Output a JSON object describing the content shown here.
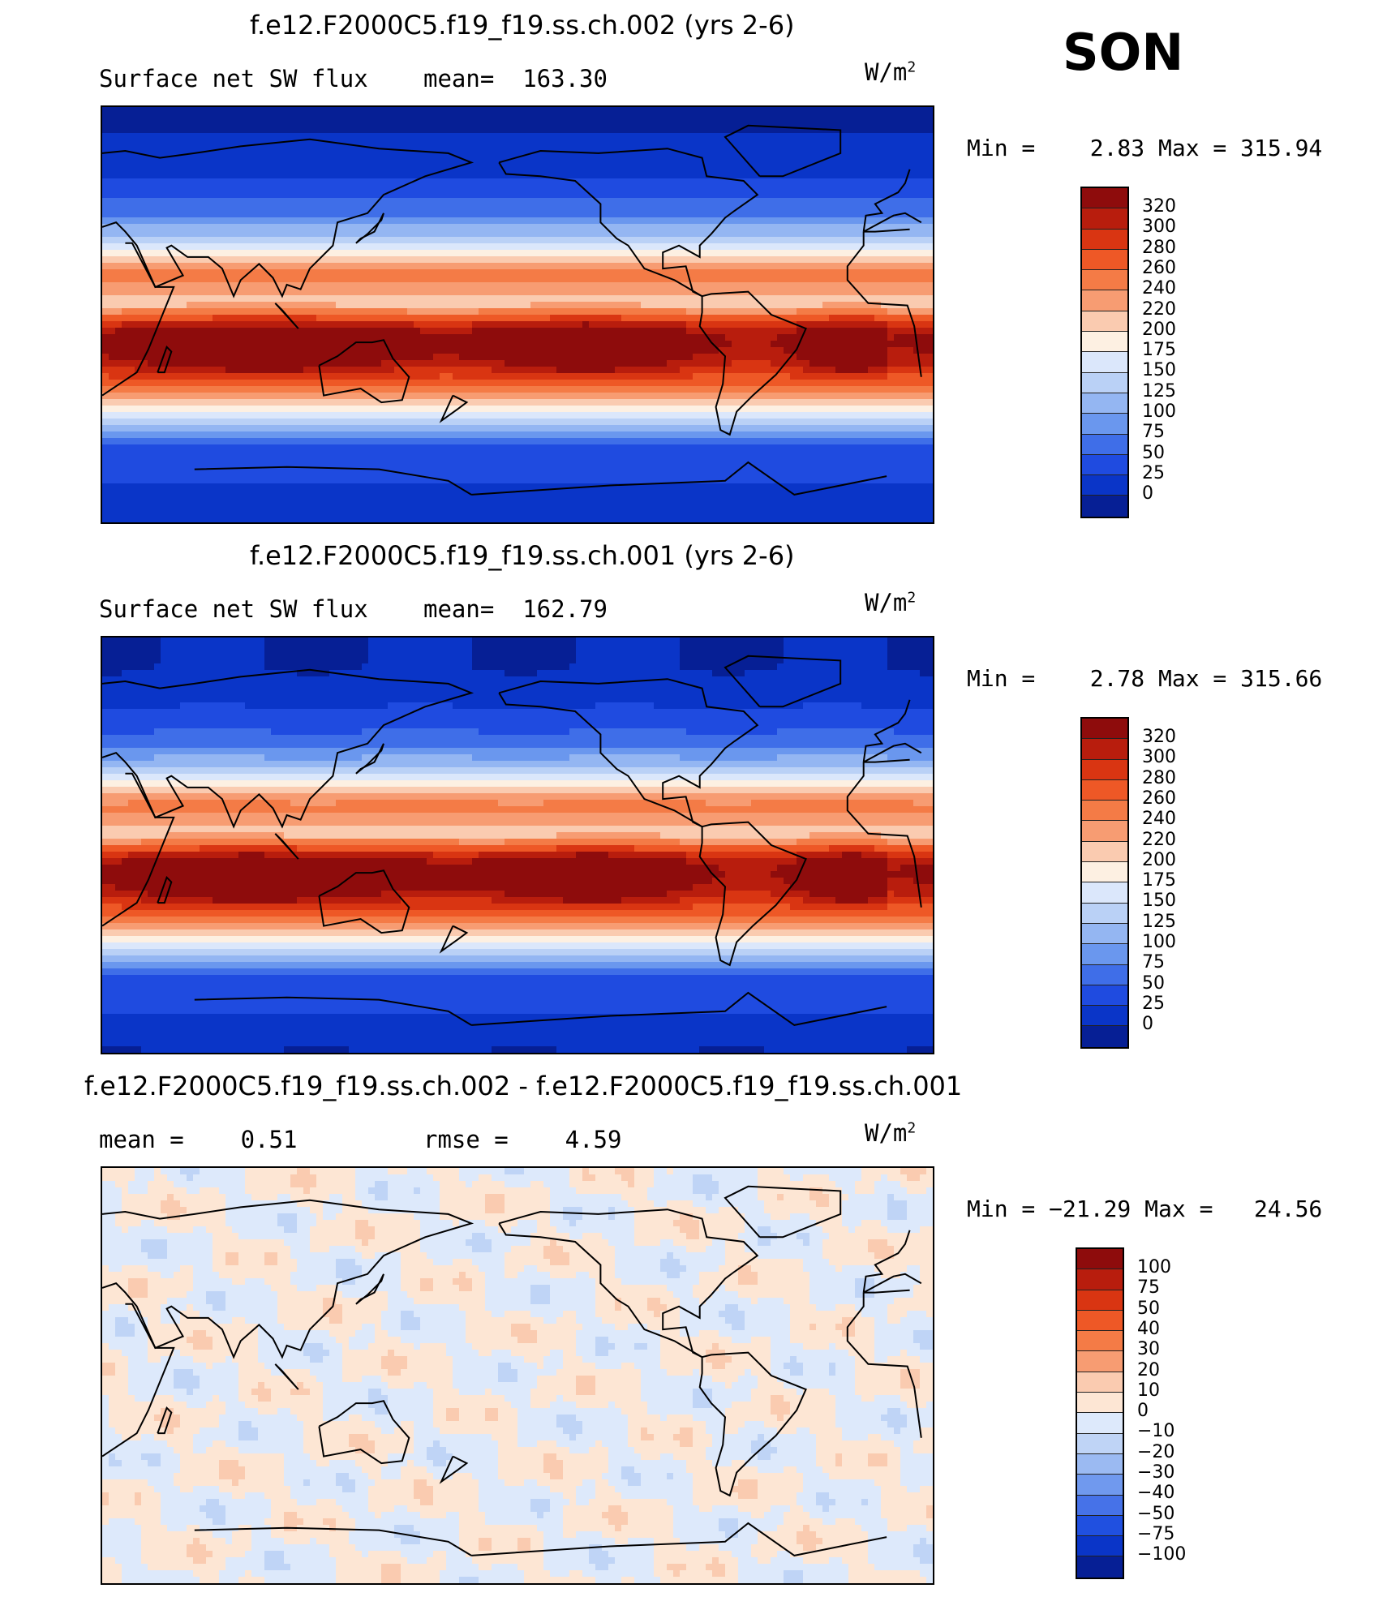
{
  "season": "SON",
  "panels": [
    {
      "title": "f.e12.F2000C5.f19_f19.ss.ch.002 (yrs 2-6)",
      "left_label": "Surface net SW flux",
      "mid_label": "mean=  163.30",
      "units": "W/m",
      "units_sup": "2",
      "minmax": "Min =    2.83 Max = 315.94",
      "kind": "abs",
      "levels": [
        "320",
        "300",
        "280",
        "260",
        "240",
        "220",
        "200",
        "175",
        "150",
        "125",
        "100",
        "75",
        "50",
        "25",
        "0"
      ]
    },
    {
      "title": "f.e12.F2000C5.f19_f19.ss.ch.001 (yrs 2-6)",
      "left_label": "Surface net SW flux",
      "mid_label": "mean=  162.79",
      "units": "W/m",
      "units_sup": "2",
      "minmax": "Min =    2.78 Max = 315.66",
      "kind": "abs",
      "levels": [
        "320",
        "300",
        "280",
        "260",
        "240",
        "220",
        "200",
        "175",
        "150",
        "125",
        "100",
        "75",
        "50",
        "25",
        "0"
      ]
    },
    {
      "title": "f.e12.F2000C5.f19_f19.ss.ch.002 - f.e12.F2000C5.f19_f19.ss.ch.001",
      "left_label": "mean =    0.51",
      "mid_label": "rmse =    4.59",
      "units": "W/m",
      "units_sup": "2",
      "minmax": "Min = −21.29 Max =   24.56",
      "kind": "diff",
      "levels": [
        "100",
        "75",
        "50",
        "40",
        "30",
        "20",
        "10",
        "0",
        "−10",
        "−20",
        "−30",
        "−40",
        "−50",
        "−75",
        "−100"
      ]
    }
  ],
  "colors": {
    "abs_scale": [
      "#8e0c0c",
      "#b81d0d",
      "#d93512",
      "#ee5826",
      "#f47b46",
      "#f79c72",
      "#facbb0",
      "#fdf0e2",
      "#dbe7fb",
      "#bad1f6",
      "#94b6f2",
      "#6a97ee",
      "#3f6ee8",
      "#1f4be0",
      "#0a35c8",
      "#061f95"
    ],
    "diff_scale": [
      "#8e0c0c",
      "#b81d0d",
      "#d93512",
      "#ee5826",
      "#f47b46",
      "#f79c72",
      "#facbb0",
      "#fde6d4",
      "#dde9fb",
      "#bfd4f6",
      "#9bbaf2",
      "#7099ee",
      "#4672e8",
      "#2050e0",
      "#0a35c8",
      "#061f95"
    ]
  }
}
